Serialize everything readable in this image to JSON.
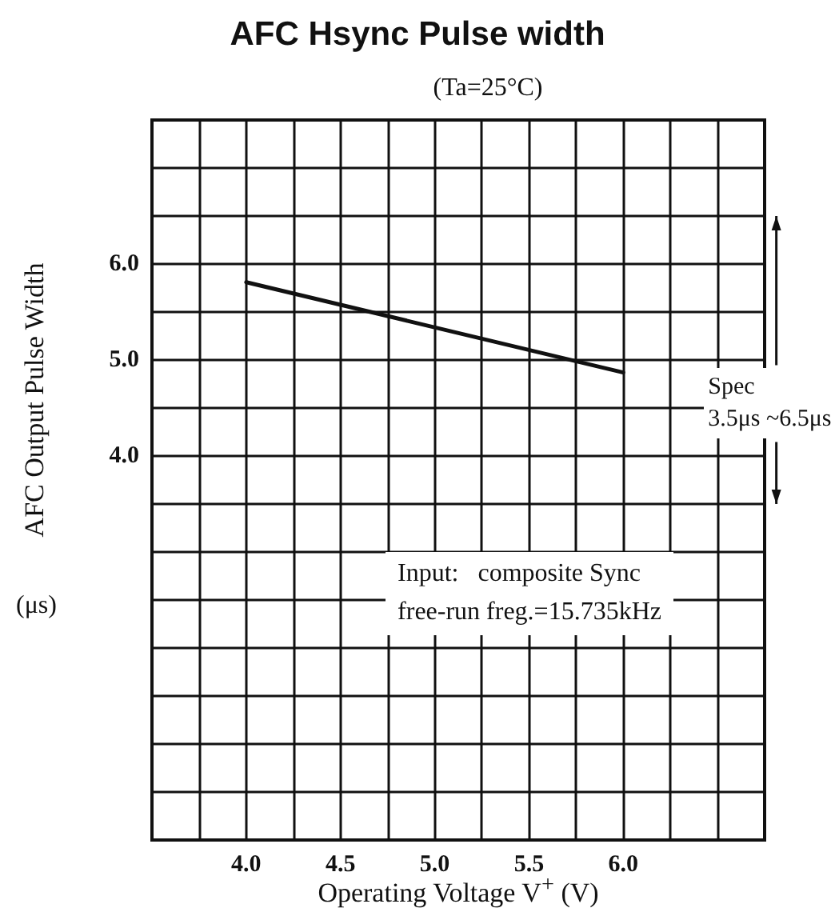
{
  "chart_data": {
    "type": "line",
    "title": "AFC Hsync Pulse width",
    "subtitle": "(Ta=25°C)",
    "xlabel": "Operating Voltage V$^{+}$ (V)",
    "ylabel": "AFC Output Pulse Width",
    "annotations": [
      "(μs)",
      "Spec\n3.5μs ~6.5μs",
      "Input:   composite Sync\nfree-run freg.=15.735kHz"
    ],
    "x": [
      4.0,
      6.0
    ],
    "series": [
      {
        "color": "#111111",
        "values": [
          5.81,
          4.87
        ]
      }
    ],
    "xlim": [
      3.5,
      6.75
    ],
    "xticks": [
      {
        "value": 3.5,
        "label": null
      },
      {
        "value": 3.75,
        "label": null
      },
      {
        "value": 4,
        "label": "4.0"
      },
      {
        "value": 4.25,
        "label": null
      },
      {
        "value": 4.5,
        "label": "4.5"
      },
      {
        "value": 4.75,
        "label": null
      },
      {
        "value": 5,
        "label": "5.0"
      },
      {
        "value": 5.25,
        "label": null
      },
      {
        "value": 5.5,
        "label": "5.5"
      },
      {
        "value": 5.75,
        "label": null
      },
      {
        "value": 6,
        "label": "6.0"
      },
      {
        "value": 6.25,
        "label": null
      },
      {
        "value": 6.5,
        "label": null
      },
      {
        "value": 6.75,
        "label": null
      }
    ],
    "ylim": [
      0,
      7.5
    ],
    "yticks": [
      {
        "value": 0,
        "label": null
      },
      {
        "value": 0.5,
        "label": null
      },
      {
        "value": 1,
        "label": null
      },
      {
        "value": 1.5,
        "label": null
      },
      {
        "value": 2,
        "label": null
      },
      {
        "value": 2.5,
        "label": null
      },
      {
        "value": 3,
        "label": null
      },
      {
        "value": 3.5,
        "label": null
      },
      {
        "value": 4,
        "label": "4.0"
      },
      {
        "value": 4.5,
        "label": null
      },
      {
        "value": 5,
        "label": "5.0"
      },
      {
        "value": 5.5,
        "label": null
      },
      {
        "value": 6,
        "label": "6.0"
      },
      {
        "value": 6.5,
        "label": null
      },
      {
        "value": 7,
        "label": null
      },
      {
        "value": 7.5,
        "label": null
      }
    ],
    "grid": true,
    "marker": "none",
    "line_style": "solid"
  }
}
